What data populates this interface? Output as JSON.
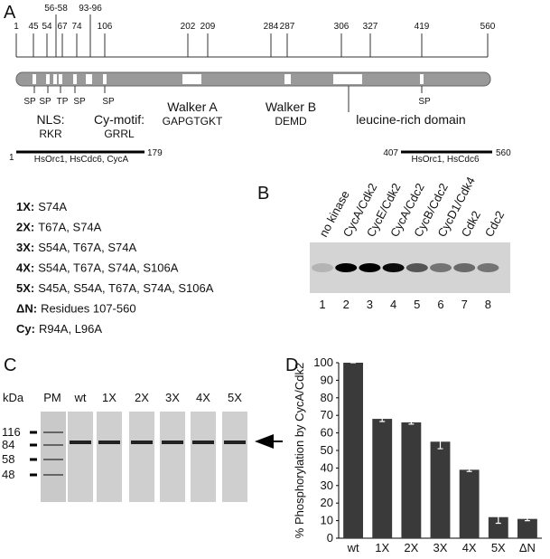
{
  "panel_a": {
    "letter": "A",
    "scale_labels": [
      "1",
      "45",
      "54",
      "56-58",
      "67",
      "74",
      "93-96",
      "106",
      "202",
      "209",
      "284",
      "287",
      "306",
      "327",
      "419",
      "560"
    ],
    "site_labels": [
      "SP",
      "SP",
      "TP",
      "SP",
      "SP",
      "SP"
    ],
    "nls": {
      "title": "NLS:",
      "seq": "RKR"
    },
    "cy_motif": {
      "title": "Cy-motif:",
      "seq": "GRRL"
    },
    "walker_a": {
      "title": "Walker A",
      "seq": "GAPGTGKT"
    },
    "walker_b": {
      "title": "Walker B",
      "seq": "DEMD"
    },
    "leucine": "leucine-rich domain",
    "homology_left": {
      "start": "1",
      "text": "HsOrc1, HsCdc6, CycA",
      "end": "179"
    },
    "homology_right": {
      "start": "407",
      "text": "HsOrc1, HsCdc6",
      "end": "560"
    },
    "mutants": [
      {
        "name": "1X:",
        "desc": "S74A"
      },
      {
        "name": "2X:",
        "desc": "T67A, S74A"
      },
      {
        "name": "3X:",
        "desc": "S54A, T67A, S74A"
      },
      {
        "name": "4X:",
        "desc": "S54A, T67A, S74A, S106A"
      },
      {
        "name": "5X:",
        "desc": "S45A, S54A, T67A, S74A, S106A"
      },
      {
        "name": "ΔN:",
        "desc": "Residues 107-560"
      },
      {
        "name": "Cy:",
        "desc": "R94A, L96A"
      }
    ]
  },
  "panel_b": {
    "letter": "B",
    "lanes": [
      "no kinase",
      "CycA/Cdk2",
      "CycE/Cdk2",
      "CycA/Cdc2",
      "CycB/Cdc2",
      "CycD1/Cdk4",
      "Cdk2",
      "Cdc2"
    ],
    "lane_numbers": [
      "1",
      "2",
      "3",
      "4",
      "5",
      "6",
      "7",
      "8"
    ]
  },
  "panel_c": {
    "letter": "C",
    "unit": "kDa",
    "marker_lane": "PM",
    "lanes": [
      "wt",
      "1X",
      "2X",
      "3X",
      "4X",
      "5X"
    ],
    "markers": [
      "116",
      "84",
      "58",
      "48"
    ]
  },
  "chart_data": {
    "type": "bar",
    "letter": "D",
    "y_label": "% Phosphorylation by CycA/Cdk2",
    "categories": [
      "wt",
      "1X",
      "2X",
      "3X",
      "4X",
      "5X",
      "ΔN"
    ],
    "values": [
      100,
      68,
      66,
      55,
      39,
      12,
      11
    ],
    "errors": [
      0,
      1.5,
      1,
      4,
      1,
      3.5,
      1
    ],
    "color": "#3a3a3a",
    "ylim": [
      0,
      100
    ],
    "yticks": [
      0,
      10,
      20,
      30,
      40,
      50,
      60,
      70,
      80,
      90,
      100
    ]
  }
}
